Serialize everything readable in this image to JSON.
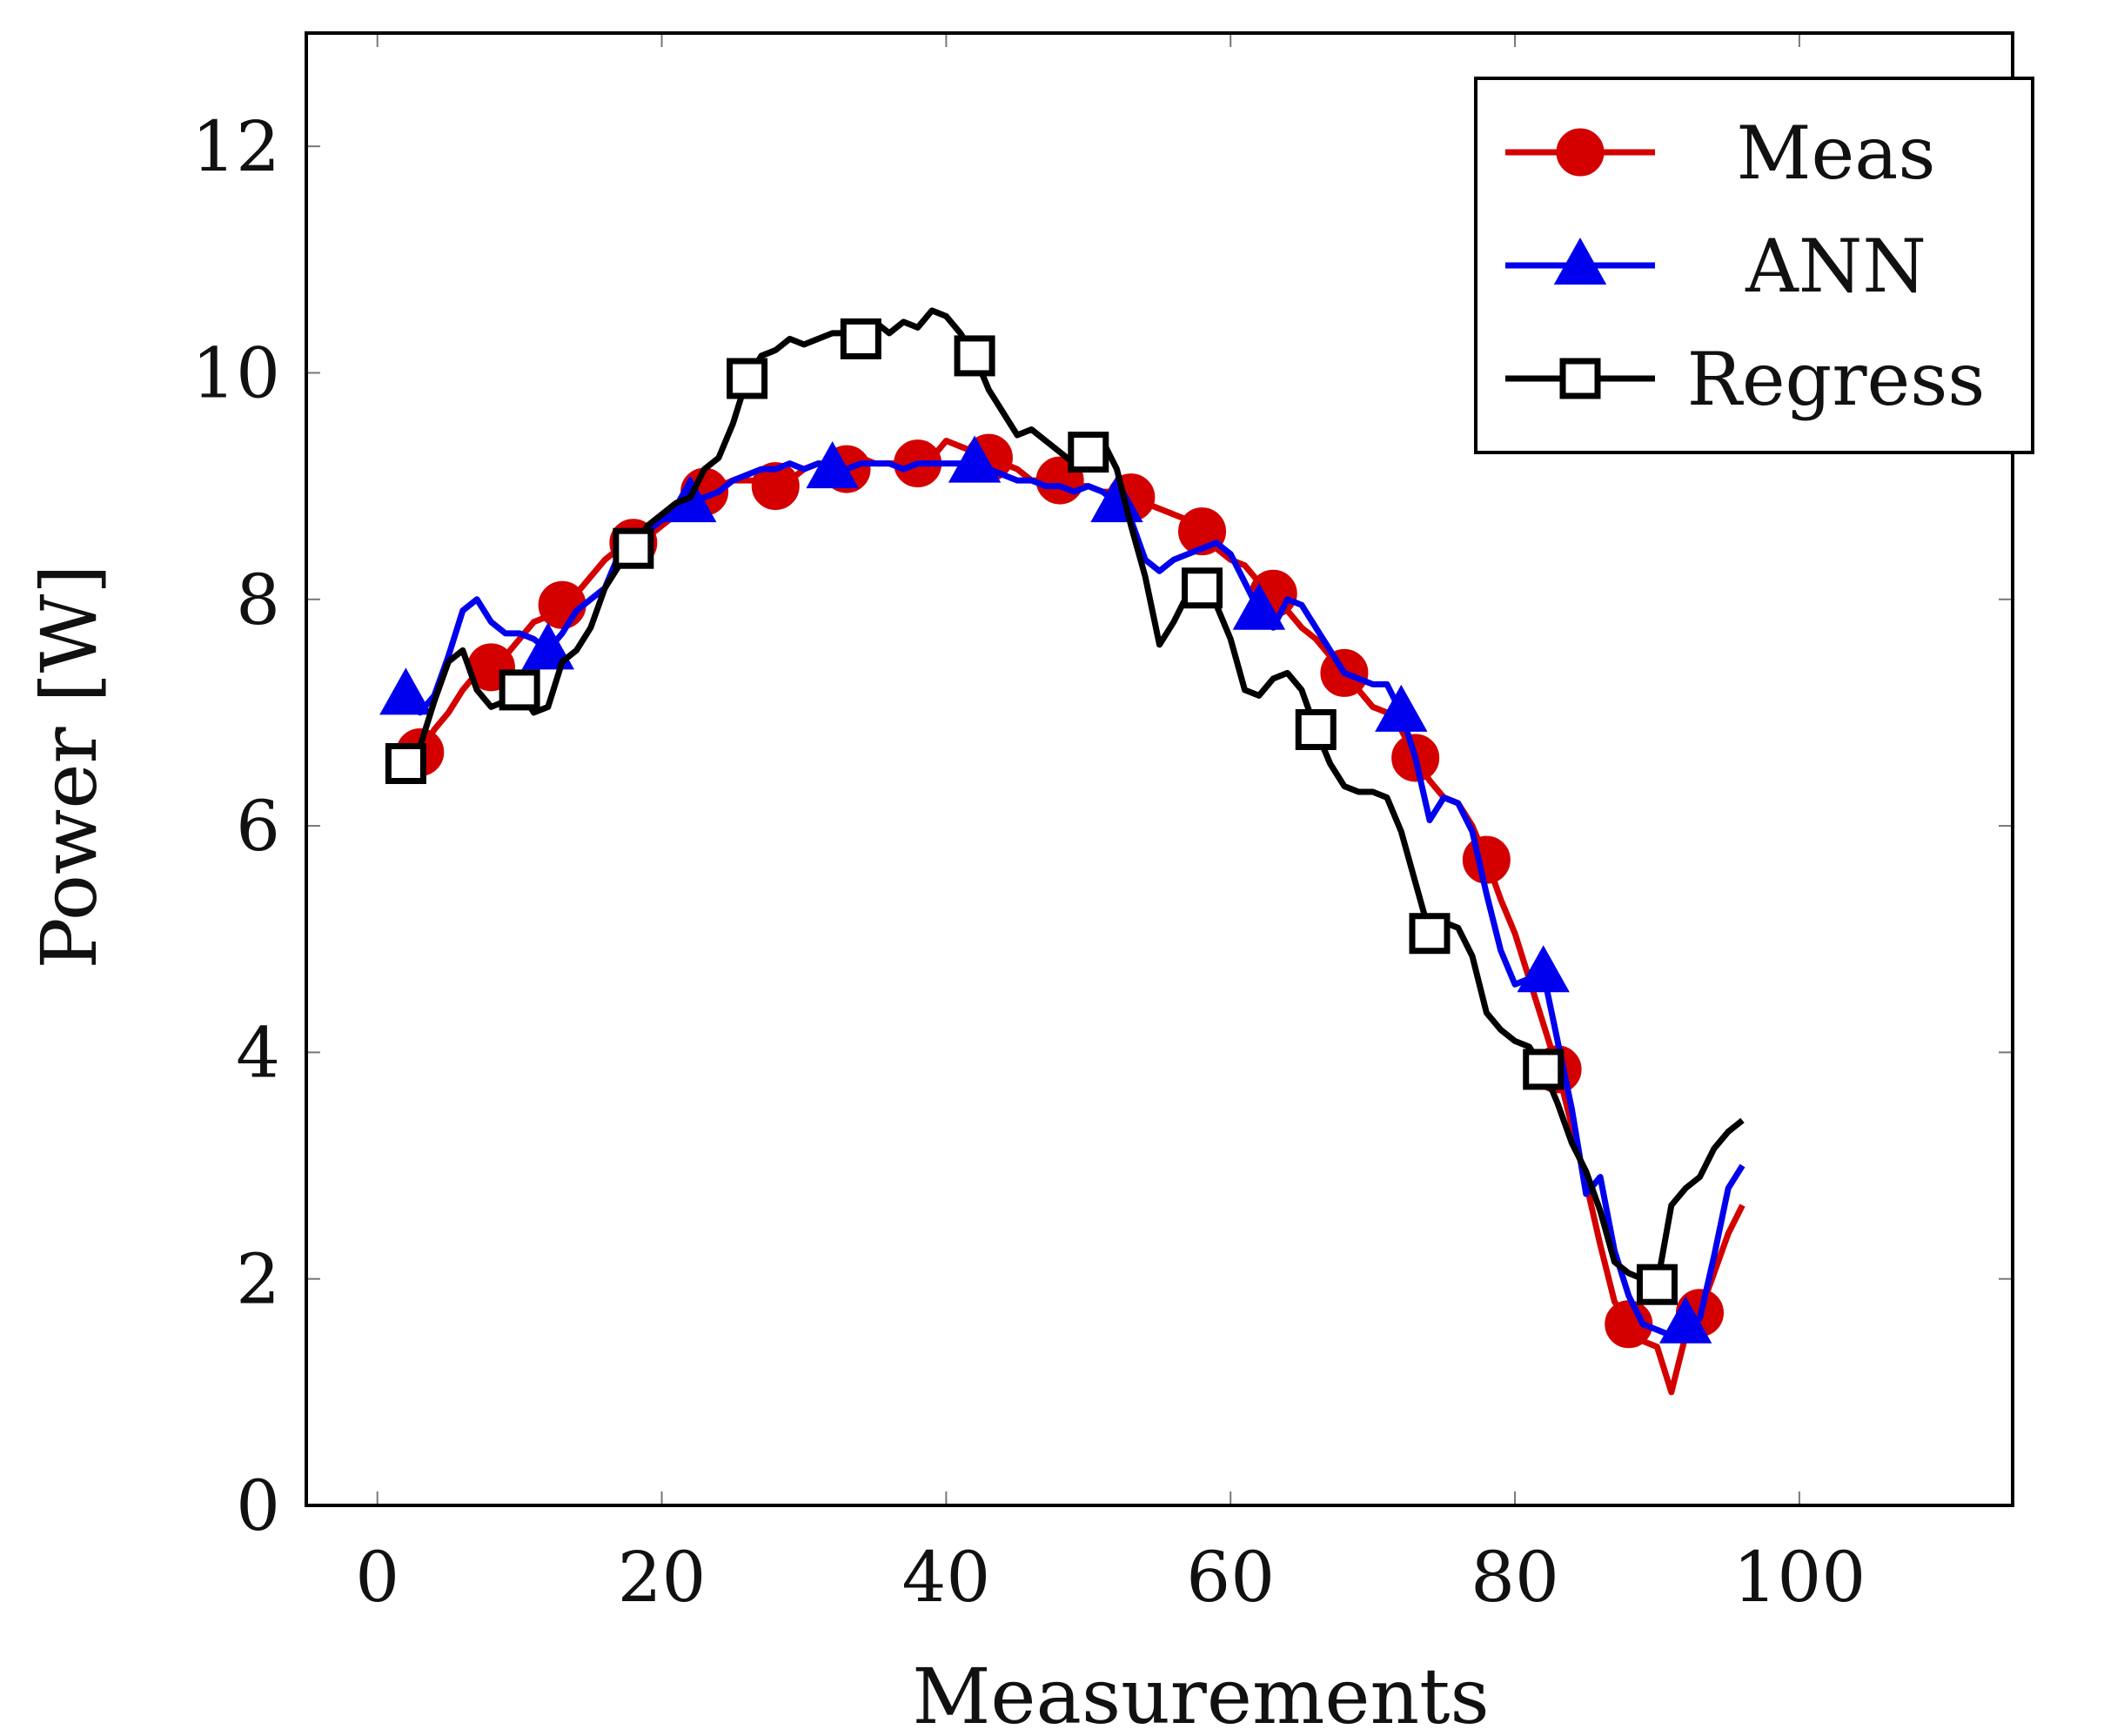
{
  "chart_data": {
    "type": "line",
    "title": "",
    "xlabel": "Measurements",
    "ylabel": "Power [W]",
    "xlim": [
      -5,
      115
    ],
    "ylim": [
      0,
      13
    ],
    "xticks": [
      0,
      20,
      40,
      60,
      80,
      100
    ],
    "yticks": [
      0,
      2,
      4,
      6,
      8,
      10,
      12
    ],
    "grid": false,
    "legend_position": "top-right",
    "series": [
      {
        "name": "Meas",
        "color": "#d40000",
        "marker": "circle",
        "marker_every": 5,
        "marker_offset": 2,
        "values": [
          6.55,
          6.5,
          6.65,
          6.85,
          7.0,
          7.2,
          7.35,
          7.4,
          7.5,
          7.65,
          7.8,
          7.85,
          7.95,
          8.05,
          8.2,
          8.35,
          8.45,
          8.5,
          8.55,
          8.65,
          8.75,
          8.85,
          8.95,
          9.0,
          9.05,
          9.05,
          9.05,
          9.0,
          9.05,
          9.15,
          9.2,
          9.2,
          9.15,
          9.25,
          9.2,
          9.2,
          9.2,
          9.2,
          9.25,
          9.4,
          9.35,
          9.3,
          9.25,
          9.2,
          9.15,
          9.05,
          9.05,
          9.05,
          9.0,
          9.0,
          8.95,
          8.95,
          8.9,
          8.85,
          8.8,
          8.75,
          8.7,
          8.6,
          8.45,
          8.35,
          8.3,
          8.15,
          8.05,
          7.9,
          7.75,
          7.65,
          7.5,
          7.35,
          7.2,
          7.05,
          7.0,
          6.85,
          6.6,
          6.4,
          6.25,
          6.2,
          6.0,
          5.7,
          5.35,
          5.05,
          4.65,
          4.25,
          3.85,
          3.35,
          2.85,
          2.3,
          1.8,
          1.6,
          1.45,
          1.4,
          1.0,
          1.5,
          1.7,
          2.05,
          2.4,
          2.65
        ],
        "x_start": 1
      },
      {
        "name": "ANN",
        "color": "#0000ee",
        "marker": "triangle",
        "marker_every": 10,
        "marker_offset": 1,
        "values": [
          7.1,
          7.15,
          7.0,
          7.15,
          7.5,
          7.9,
          8.0,
          7.8,
          7.7,
          7.7,
          7.65,
          7.55,
          7.7,
          7.9,
          8.0,
          8.1,
          8.4,
          8.55,
          8.6,
          8.7,
          8.8,
          8.85,
          8.9,
          8.95,
          9.05,
          9.1,
          9.15,
          9.15,
          9.2,
          9.15,
          9.2,
          9.15,
          9.15,
          9.2,
          9.2,
          9.2,
          9.15,
          9.2,
          9.2,
          9.2,
          9.2,
          9.2,
          9.15,
          9.1,
          9.05,
          9.05,
          9.0,
          9.0,
          8.95,
          9.0,
          8.95,
          8.85,
          8.7,
          8.35,
          8.25,
          8.35,
          8.4,
          8.45,
          8.5,
          8.4,
          8.15,
          7.9,
          7.75,
          8.0,
          7.95,
          7.75,
          7.55,
          7.35,
          7.3,
          7.25,
          7.25,
          7.0,
          6.6,
          6.05,
          6.25,
          6.2,
          5.95,
          5.4,
          4.9,
          4.6,
          4.65,
          4.7,
          4.1,
          3.5,
          2.75,
          2.9,
          2.25,
          1.85,
          1.6,
          1.55,
          1.5,
          1.6,
          1.65,
          2.2,
          2.8,
          3.0
        ],
        "x_start": 1
      },
      {
        "name": "Regress",
        "color": "#000000",
        "marker": "square",
        "marker_every": 8,
        "marker_offset": 1,
        "values": [
          6.65,
          6.55,
          6.7,
          7.1,
          7.45,
          7.55,
          7.2,
          7.05,
          7.1,
          7.2,
          7.0,
          7.05,
          7.45,
          7.55,
          7.75,
          8.1,
          8.3,
          8.45,
          8.65,
          8.75,
          8.85,
          8.9,
          9.15,
          9.25,
          9.55,
          9.95,
          10.15,
          10.2,
          10.3,
          10.25,
          10.3,
          10.35,
          10.35,
          10.3,
          10.45,
          10.35,
          10.45,
          10.4,
          10.55,
          10.5,
          10.35,
          10.15,
          9.85,
          9.65,
          9.45,
          9.5,
          9.4,
          9.3,
          9.2,
          9.3,
          9.4,
          9.15,
          8.65,
          8.2,
          7.6,
          7.8,
          8.05,
          8.1,
          7.95,
          7.65,
          7.2,
          7.15,
          7.3,
          7.35,
          7.2,
          6.85,
          6.55,
          6.35,
          6.3,
          6.3,
          6.25,
          5.95,
          5.5,
          5.05,
          5.15,
          5.1,
          4.85,
          4.35,
          4.2,
          4.1,
          4.05,
          3.85,
          3.55,
          3.2,
          2.95,
          2.6,
          2.15,
          2.05,
          2.0,
          1.95,
          2.65,
          2.8,
          2.9,
          3.15,
          3.3,
          3.4
        ],
        "x_start": 1
      }
    ]
  }
}
